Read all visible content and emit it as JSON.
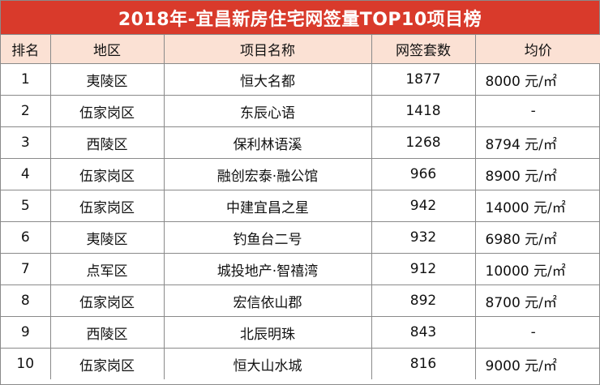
{
  "title": "2018年-宜昌新房住宅网签量TOP10项目榜",
  "colors": {
    "title_bg": "#d93a2b",
    "header_bg": "#fbe1d4",
    "border": "#8a8a8a"
  },
  "table": {
    "headers": [
      "排名",
      "地区",
      "项目名称",
      "网签套数",
      "均价"
    ],
    "rows": [
      {
        "rank": "1",
        "district": "夷陵区",
        "project": "恒大名都",
        "signed": "1877",
        "price": "8000 元/㎡"
      },
      {
        "rank": "2",
        "district": "伍家岗区",
        "project": "东辰心语",
        "signed": "1418",
        "price": "-"
      },
      {
        "rank": "3",
        "district": "西陵区",
        "project": "保利林语溪",
        "signed": "1268",
        "price": "8794 元/㎡"
      },
      {
        "rank": "4",
        "district": "伍家岗区",
        "project": "融创宏泰·融公馆",
        "signed": "966",
        "price": "8900 元/㎡"
      },
      {
        "rank": "5",
        "district": "伍家岗区",
        "project": "中建宜昌之星",
        "signed": "942",
        "price": "14000 元/㎡"
      },
      {
        "rank": "6",
        "district": "夷陵区",
        "project": "钓鱼台二号",
        "signed": "932",
        "price": "6980 元/㎡"
      },
      {
        "rank": "7",
        "district": "点军区",
        "project": "城投地产·智禧湾",
        "signed": "912",
        "price": "10000 元/㎡"
      },
      {
        "rank": "8",
        "district": "伍家岗区",
        "project": "宏信依山郡",
        "signed": "892",
        "price": "8700 元/㎡"
      },
      {
        "rank": "9",
        "district": "西陵区",
        "project": "北辰明珠",
        "signed": "843",
        "price": "-"
      },
      {
        "rank": "10",
        "district": "伍家岗区",
        "project": "恒大山水城",
        "signed": "816",
        "price": "9000 元/㎡"
      }
    ]
  }
}
